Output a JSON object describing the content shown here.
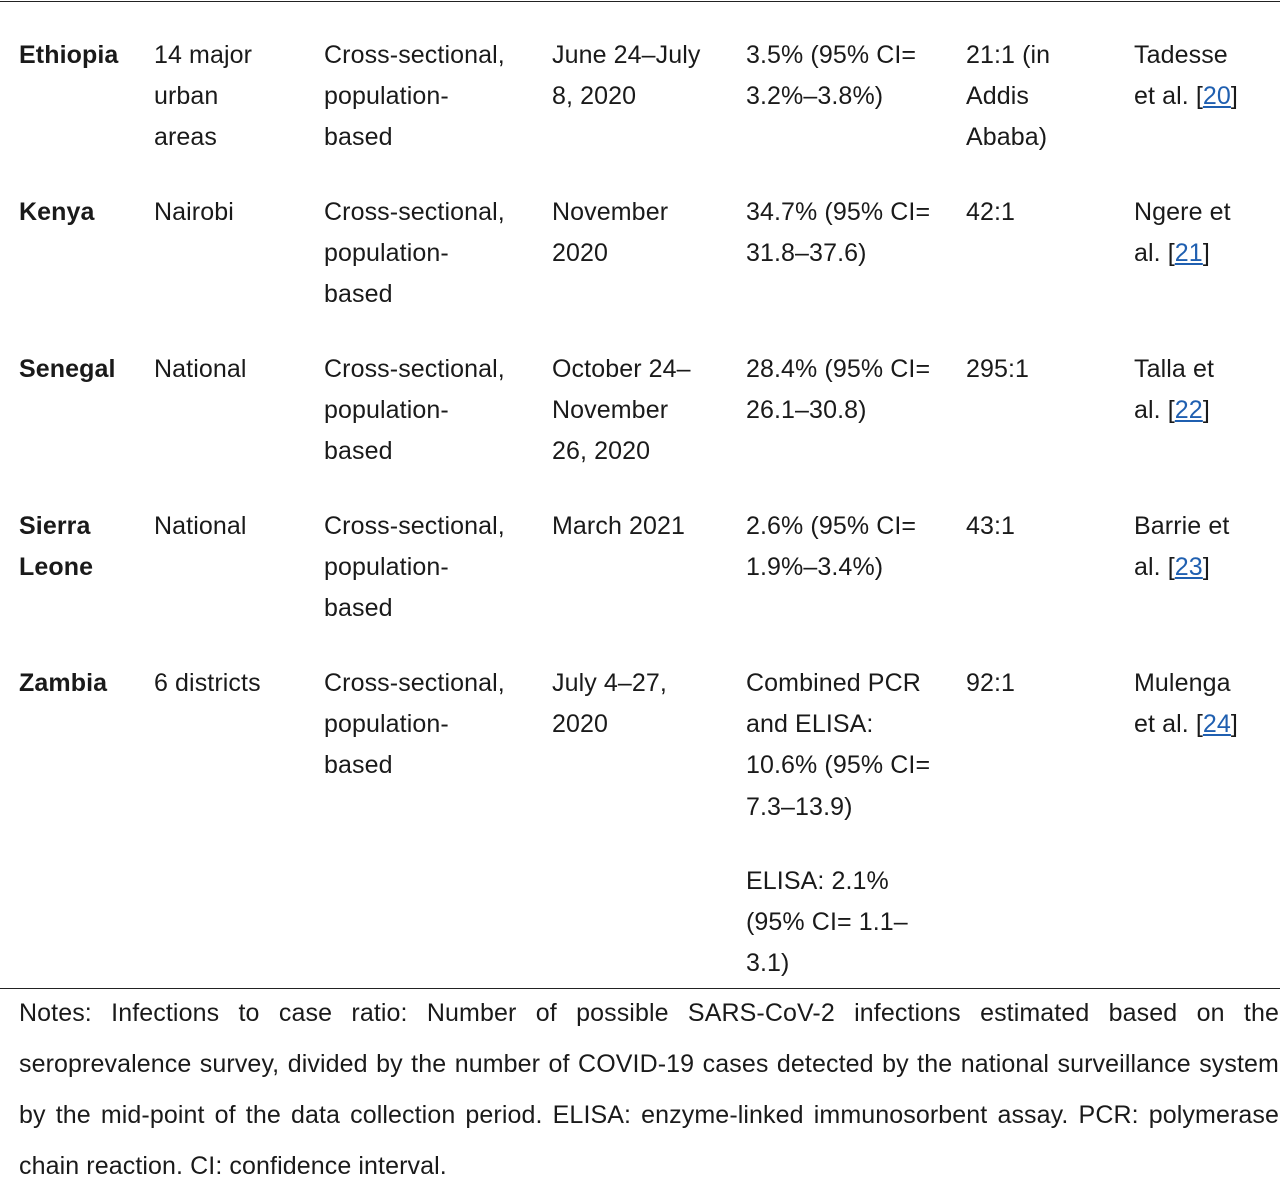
{
  "rows": [
    {
      "country": "Ethiopia",
      "area": "14 major\nurban\nareas",
      "design": "Cross-sectional,\npopulation-\nbased",
      "period": "June 24–July\n8, 2020",
      "prevalence": [
        "3.5% (95% CI=\n3.2%–3.8%)"
      ],
      "ratio": "21:1 (in\nAddis\nAbaba)",
      "ref_text": "Tadesse\net al. [",
      "ref_num": "20",
      "ref_close": "]"
    },
    {
      "country": "Kenya",
      "area": "Nairobi",
      "design": "Cross-sectional,\npopulation-\nbased",
      "period": "November\n2020",
      "prevalence": [
        "34.7% (95% CI=\n31.8–37.6)"
      ],
      "ratio": "42:1",
      "ref_text": "Ngere et\nal. [",
      "ref_num": "21",
      "ref_close": "]"
    },
    {
      "country": "Senegal",
      "area": "National",
      "design": "Cross-sectional,\npopulation-\nbased",
      "period": "October 24–\nNovember\n26, 2020",
      "prevalence": [
        "28.4% (95% CI=\n26.1–30.8)"
      ],
      "ratio": "295:1",
      "ref_text": "Talla et\nal. [",
      "ref_num": "22",
      "ref_close": "]"
    },
    {
      "country": "Sierra\nLeone",
      "area": "National",
      "design": "Cross-sectional,\npopulation-\nbased",
      "period": "March 2021",
      "prevalence": [
        "2.6% (95% CI=\n1.9%–3.4%)"
      ],
      "ratio": "43:1",
      "ref_text": "Barrie et\nal. [",
      "ref_num": "23",
      "ref_close": "]"
    },
    {
      "country": "Zambia",
      "area": "6 districts",
      "design": "Cross-sectional,\npopulation-\nbased",
      "period": "July 4–27,\n2020",
      "prevalence": [
        "Combined PCR\nand ELISA:\n10.6% (95% CI=\n7.3–13.9)",
        "ELISA: 2.1%\n(95% CI= 1.1–\n3.1)"
      ],
      "ratio": "92:1",
      "ref_text": "Mulenga\net al. [",
      "ref_num": "24",
      "ref_close": "]"
    }
  ],
  "notes": "Notes: Infections to case ratio: Number of possible SARS-CoV-2 infections estimated based on the seroprevalence survey, divided by the number of COVID-19 cases detected by the national surveillance system by the mid-point of the data collection period. ELISA: enzyme-linked immunosorbent assay. PCR: polymerase chain reaction. CI: confidence interval."
}
